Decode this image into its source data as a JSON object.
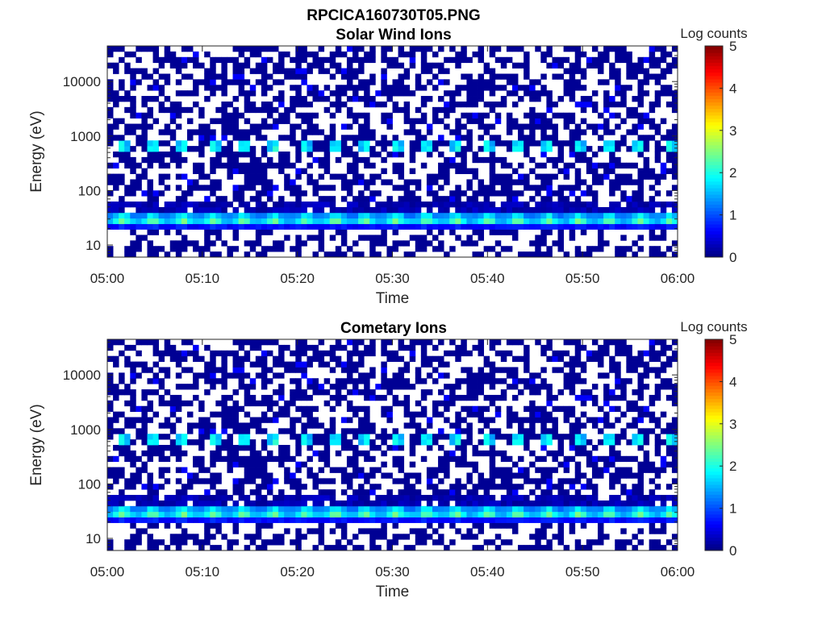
{
  "figure": {
    "title": "RPCICA160730T05.PNG"
  },
  "chart_data": [
    {
      "type": "heatmap",
      "title": "Solar Wind Ions",
      "xlabel": "Time",
      "ylabel": "Energy (eV)",
      "x_ticks": [
        "05:00",
        "05:10",
        "05:20",
        "05:30",
        "05:40",
        "05:50",
        "06:00"
      ],
      "y_ticks": [
        "10",
        "100",
        "1000",
        "10000"
      ],
      "y_scale": "log",
      "ylim": [
        6,
        45000
      ],
      "colorbar": {
        "label": "Log counts",
        "ticks": [
          "0",
          "1",
          "2",
          "3",
          "4",
          "5"
        ],
        "range": [
          0,
          5
        ]
      },
      "colormap": "jet",
      "features": [
        {
          "description_energy_eV": 30,
          "peak_log_counts": 2.6,
          "period_min": 3.2
        },
        {
          "description_energy_eV": 650,
          "peak_log_counts": 2.2,
          "period_min": 3.2
        }
      ]
    },
    {
      "type": "heatmap",
      "title": "Cometary Ions",
      "xlabel": "Time",
      "ylabel": "Energy (eV)",
      "x_ticks": [
        "05:00",
        "05:10",
        "05:20",
        "05:30",
        "05:40",
        "05:50",
        "06:00"
      ],
      "y_ticks": [
        "10",
        "100",
        "1000",
        "10000"
      ],
      "y_scale": "log",
      "ylim": [
        6,
        45000
      ],
      "colorbar": {
        "label": "Log counts",
        "ticks": [
          "0",
          "1",
          "2",
          "3",
          "4",
          "5"
        ],
        "range": [
          0,
          5
        ]
      },
      "colormap": "jet",
      "features": [
        {
          "description_energy_eV": 30,
          "peak_log_counts": 2.6,
          "period_min": 3.2
        },
        {
          "description_energy_eV": 650,
          "peak_log_counts": 2.2,
          "period_min": 3.2
        }
      ]
    }
  ]
}
